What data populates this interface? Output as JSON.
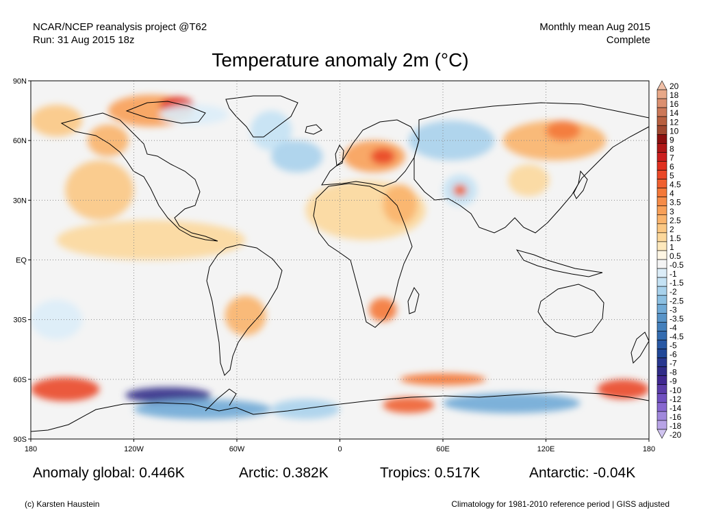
{
  "header": {
    "left_line1": "NCAR/NCEP reanalysis project @T62",
    "left_line2": "Run: 31 Aug 2015 18z",
    "right_line1": "Monthly mean Aug 2015",
    "right_line2": "Complete"
  },
  "map": {
    "title": "Temperature anomaly 2m (°C)",
    "projection": "equirectangular",
    "lon_range": [
      -180,
      180
    ],
    "lat_range": [
      -90,
      90
    ],
    "grid": "dotted",
    "lon_ticks": [
      {
        "value": -180,
        "label": "180"
      },
      {
        "value": -120,
        "label": "120W"
      },
      {
        "value": -60,
        "label": "60W"
      },
      {
        "value": 0,
        "label": "0"
      },
      {
        "value": 60,
        "label": "60E"
      },
      {
        "value": 120,
        "label": "120E"
      },
      {
        "value": 180,
        "label": "180"
      }
    ],
    "lat_ticks": [
      {
        "value": 90,
        "label": "90N"
      },
      {
        "value": 60,
        "label": "60N"
      },
      {
        "value": 30,
        "label": "30N"
      },
      {
        "value": 0,
        "label": "EQ"
      },
      {
        "value": -30,
        "label": "30S"
      },
      {
        "value": -60,
        "label": "60S"
      },
      {
        "value": -90,
        "label": "90S"
      }
    ],
    "anomaly_regions": [
      {
        "lon": -110,
        "lat": 75,
        "rx": 25,
        "ry": 8,
        "level": 3
      },
      {
        "lon": -95,
        "lat": 78,
        "rx": 10,
        "ry": 4,
        "level": 6
      },
      {
        "lon": -165,
        "lat": 70,
        "rx": 15,
        "ry": 8,
        "level": 2
      },
      {
        "lon": -135,
        "lat": 60,
        "rx": 12,
        "ry": 8,
        "level": 2.5
      },
      {
        "lon": -140,
        "lat": 35,
        "rx": 20,
        "ry": 15,
        "level": 2
      },
      {
        "lon": -110,
        "lat": 10,
        "rx": 55,
        "ry": 10,
        "level": 1.5
      },
      {
        "lon": -40,
        "lat": 65,
        "rx": 12,
        "ry": 10,
        "level": -1.5
      },
      {
        "lon": -25,
        "lat": 52,
        "rx": 15,
        "ry": 8,
        "level": -2
      },
      {
        "lon": 20,
        "lat": 52,
        "rx": 18,
        "ry": 8,
        "level": 3
      },
      {
        "lon": 25,
        "lat": 52,
        "rx": 7,
        "ry": 4,
        "level": 5
      },
      {
        "lon": 15,
        "lat": 25,
        "rx": 35,
        "ry": 15,
        "level": 1.5
      },
      {
        "lon": 35,
        "lat": 28,
        "rx": 10,
        "ry": 10,
        "level": 2.5
      },
      {
        "lon": 65,
        "lat": 60,
        "rx": 25,
        "ry": 10,
        "level": -2
      },
      {
        "lon": 70,
        "lat": 35,
        "rx": 10,
        "ry": 8,
        "level": -1.5
      },
      {
        "lon": 70,
        "lat": 35,
        "rx": 4,
        "ry": 3,
        "level": 4.5
      },
      {
        "lon": 125,
        "lat": 60,
        "rx": 30,
        "ry": 10,
        "level": 2.5
      },
      {
        "lon": 130,
        "lat": 65,
        "rx": 10,
        "ry": 5,
        "level": 4
      },
      {
        "lon": 110,
        "lat": 40,
        "rx": 12,
        "ry": 8,
        "level": 1.5
      },
      {
        "lon": -85,
        "lat": 73,
        "rx": 20,
        "ry": 5,
        "level": -1
      },
      {
        "lon": 25,
        "lat": -25,
        "rx": 8,
        "ry": 6,
        "level": 4
      },
      {
        "lon": -55,
        "lat": -28,
        "rx": 12,
        "ry": 10,
        "level": 2.5
      },
      {
        "lon": -165,
        "lat": -30,
        "rx": 15,
        "ry": 10,
        "level": -1
      },
      {
        "lon": 140,
        "lat": -25,
        "rx": 25,
        "ry": 15,
        "level": -0.5
      },
      {
        "lon": -160,
        "lat": -65,
        "rx": 20,
        "ry": 6,
        "level": 5
      },
      {
        "lon": 165,
        "lat": -65,
        "rx": 15,
        "ry": 5,
        "level": 5
      },
      {
        "lon": -100,
        "lat": -68,
        "rx": 25,
        "ry": 4,
        "level": -8
      },
      {
        "lon": -80,
        "lat": -75,
        "rx": 40,
        "ry": 5,
        "level": -3
      },
      {
        "lon": 60,
        "lat": -60,
        "rx": 25,
        "ry": 3,
        "level": 4
      },
      {
        "lon": 40,
        "lat": -73,
        "rx": 15,
        "ry": 4,
        "level": 4.5
      },
      {
        "lon": 100,
        "lat": -72,
        "rx": 40,
        "ry": 5,
        "level": -3
      },
      {
        "lon": -20,
        "lat": -75,
        "rx": 20,
        "ry": 5,
        "level": -2
      }
    ]
  },
  "colorbar": {
    "levels": [
      {
        "label": "20",
        "color": "#f0c0a8"
      },
      {
        "label": "18",
        "color": "#e8a888"
      },
      {
        "label": "16",
        "color": "#dc9070"
      },
      {
        "label": "14",
        "color": "#cc7858"
      },
      {
        "label": "12",
        "color": "#b86040"
      },
      {
        "label": "10",
        "color": "#a04830"
      },
      {
        "label": "9",
        "color": "#8c1010"
      },
      {
        "label": "8",
        "color": "#b01818"
      },
      {
        "label": "7",
        "color": "#cc2020"
      },
      {
        "label": "6",
        "color": "#e03020"
      },
      {
        "label": "5",
        "color": "#ea4828"
      },
      {
        "label": "4.5",
        "color": "#f06030"
      },
      {
        "label": "4",
        "color": "#f47838"
      },
      {
        "label": "3.5",
        "color": "#f68c48"
      },
      {
        "label": "3",
        "color": "#f8a058"
      },
      {
        "label": "2.5",
        "color": "#fab46c"
      },
      {
        "label": "2",
        "color": "#fbc884"
      },
      {
        "label": "1.5",
        "color": "#fcd89c"
      },
      {
        "label": "1",
        "color": "#fde8bc"
      },
      {
        "label": "0.5",
        "color": "#fef6e4"
      },
      {
        "label": "-0.5",
        "color": "#f4f4f4"
      },
      {
        "label": "-1",
        "color": "#dcedf8"
      },
      {
        "label": "-1.5",
        "color": "#c4e2f4"
      },
      {
        "label": "-2",
        "color": "#a8d2ec"
      },
      {
        "label": "-2.5",
        "color": "#8cc0e2"
      },
      {
        "label": "-3",
        "color": "#70aad6"
      },
      {
        "label": "-3.5",
        "color": "#5894c8"
      },
      {
        "label": "-4",
        "color": "#4480bc"
      },
      {
        "label": "-4.5",
        "color": "#346cb0"
      },
      {
        "label": "-5",
        "color": "#2858a4"
      },
      {
        "label": "-6",
        "color": "#204898"
      },
      {
        "label": "-7",
        "color": "#283890"
      },
      {
        "label": "-8",
        "color": "#302c88"
      },
      {
        "label": "-9",
        "color": "#402890"
      },
      {
        "label": "-10",
        "color": "#5a3ca8"
      },
      {
        "label": "-12",
        "color": "#7050c0"
      },
      {
        "label": "-14",
        "color": "#8868d0"
      },
      {
        "label": "-16",
        "color": "#a088dc"
      },
      {
        "label": "-18",
        "color": "#b8a4e6"
      },
      {
        "label": "-20",
        "color": "#d0c4f0"
      }
    ]
  },
  "stats": {
    "global": "Anomaly global: 0.446K",
    "arctic": "Arctic: 0.382K",
    "tropics": "Tropics: 0.517K",
    "antarctic": "Antarctic: -0.04K"
  },
  "footer": {
    "left": "(c) Karsten Haustein",
    "right": "Climatology for 1981-2010 reference period | GISS adjusted"
  }
}
